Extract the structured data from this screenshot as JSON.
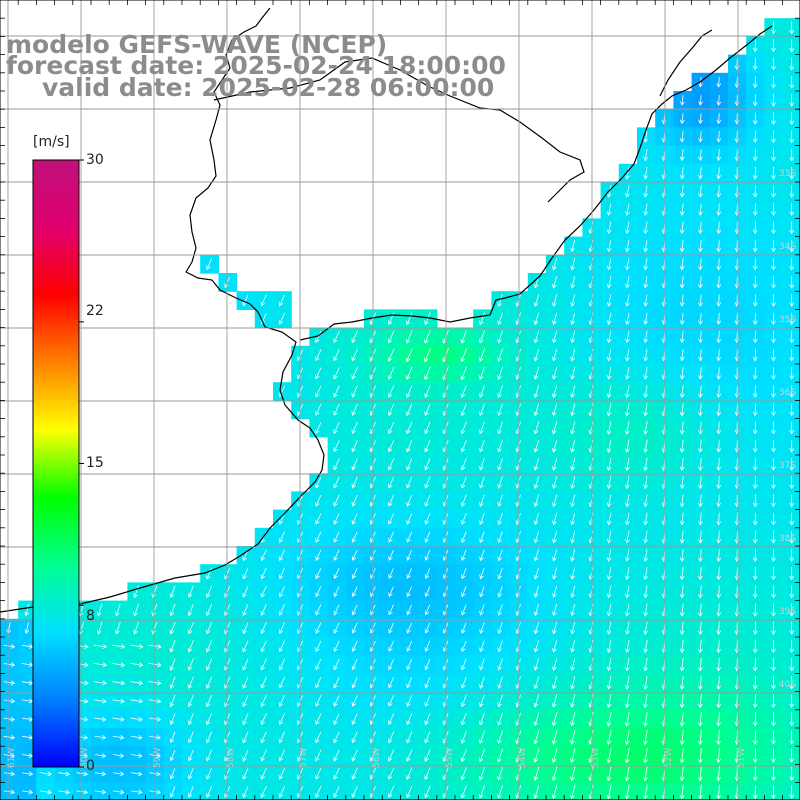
{
  "title": {
    "line1": "modelo GEFS-WAVE (NCEP)",
    "line2": "forecast date: 2025-02-24 18:00:00",
    "line3": "valid date: 2025-02-28 06:00:00"
  },
  "colorbar": {
    "unit": "[m/s]",
    "min": 0,
    "max": 30,
    "ticks": [
      "30",
      "22",
      "15",
      "8",
      "0"
    ],
    "tick_values": [
      30,
      22,
      15,
      8,
      0
    ],
    "stops": [
      "#0000ff",
      "#0080ff",
      "#00e0ff",
      "#00ff90",
      "#00ff00",
      "#ffff00",
      "#ff8000",
      "#ff0000",
      "#e00070",
      "#c0107a"
    ]
  },
  "map": {
    "lon_labels": [
      "61W",
      "60W",
      "59W",
      "58W",
      "57W",
      "56W",
      "55W",
      "54W",
      "53W",
      "52W",
      "51W"
    ],
    "lat_labels": [
      "33S",
      "34S",
      "35S",
      "36S",
      "37S",
      "38S",
      "39S",
      "40S"
    ],
    "land_color": "#ffffff",
    "coast_color": "#000000",
    "grid_color": "#9a9a9a"
  }
}
